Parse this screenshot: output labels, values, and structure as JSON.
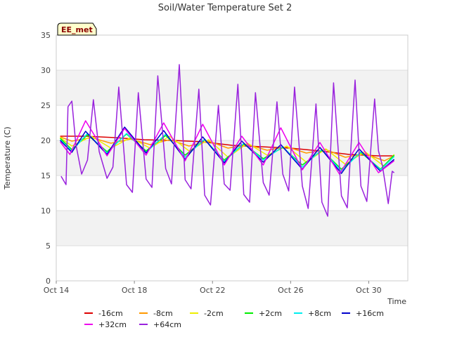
{
  "chart_data": {
    "type": "line",
    "title": "Soil/Water Temperature Set 2",
    "xlabel": "Time",
    "ylabel": "Temperature (C)",
    "badge": "EE_met",
    "x_ticks": [
      "Oct 14",
      "Oct 18",
      "Oct 22",
      "Oct 26",
      "Oct 30"
    ],
    "xlim_days": [
      14,
      32
    ],
    "ylim": [
      0,
      35
    ],
    "y_ticks": [
      0,
      5,
      10,
      15,
      20,
      25,
      30,
      35
    ],
    "grid": true,
    "legend_position": "bottom",
    "series": [
      {
        "name": "-16cm",
        "color": "#dd0000",
        "x": [
          14.2,
          15.5,
          17,
          18.5,
          20,
          21.5,
          23,
          24.5,
          26,
          27.5,
          29,
          30.5,
          31.3
        ],
        "y": [
          20.6,
          20.6,
          20.4,
          20.1,
          20.0,
          19.8,
          19.3,
          19.1,
          18.9,
          18.5,
          18.0,
          17.8,
          17.8
        ]
      },
      {
        "name": "-8cm",
        "color": "#ff9900",
        "x": [
          14.2,
          14.8,
          15.8,
          16.8,
          17.8,
          18.8,
          19.8,
          20.8,
          21.8,
          22.8,
          23.8,
          24.8,
          25.8,
          26.8,
          27.8,
          28.8,
          29.8,
          30.8,
          31.3
        ],
        "y": [
          20.5,
          19.9,
          20.4,
          19.6,
          20.2,
          19.4,
          20.1,
          19.2,
          19.9,
          18.9,
          19.4,
          18.6,
          19.1,
          18.2,
          18.7,
          17.6,
          18.1,
          17.1,
          17.8
        ]
      },
      {
        "name": "-2cm",
        "color": "#eeee00",
        "x": [
          14.2,
          14.8,
          15.8,
          16.8,
          17.8,
          18.8,
          19.8,
          20.8,
          21.8,
          22.8,
          23.8,
          24.8,
          25.8,
          26.8,
          27.8,
          28.8,
          29.8,
          30.8,
          31.3
        ],
        "y": [
          20.4,
          19.2,
          20.6,
          18.9,
          20.4,
          18.9,
          20.6,
          18.5,
          20.1,
          17.6,
          19.6,
          17.9,
          19.2,
          16.9,
          18.8,
          16.6,
          18.4,
          16.3,
          18.0
        ]
      },
      {
        "name": "+2cm",
        "color": "#00ee00",
        "x": [
          14.2,
          14.8,
          15.6,
          16.6,
          17.6,
          18.6,
          19.6,
          20.6,
          21.6,
          22.6,
          23.6,
          24.6,
          25.6,
          26.6,
          27.6,
          28.6,
          29.6,
          30.6,
          31.3
        ],
        "y": [
          20.3,
          18.7,
          20.8,
          18.4,
          20.9,
          18.5,
          20.7,
          17.9,
          20.1,
          17.2,
          19.5,
          17.4,
          19.0,
          16.5,
          18.6,
          15.9,
          18.3,
          15.9,
          17.9
        ]
      },
      {
        "name": "+8cm",
        "color": "#00eeee",
        "x": [
          14.2,
          14.8,
          15.6,
          16.6,
          17.6,
          18.6,
          19.6,
          20.6,
          21.6,
          22.6,
          23.6,
          24.6,
          25.6,
          26.6,
          27.6,
          28.6,
          29.6,
          30.6,
          31.3
        ],
        "y": [
          20.1,
          18.5,
          21.0,
          18.2,
          21.0,
          18.3,
          20.9,
          17.6,
          20.2,
          17.0,
          19.6,
          17.2,
          19.1,
          16.2,
          18.7,
          15.6,
          18.4,
          15.8,
          17.7
        ]
      },
      {
        "name": "+16cm",
        "color": "#0000cc",
        "x": [
          14.2,
          14.8,
          15.5,
          16.6,
          17.5,
          18.6,
          19.5,
          20.6,
          21.5,
          22.6,
          23.5,
          24.6,
          25.5,
          26.6,
          27.5,
          28.6,
          29.5,
          30.6,
          31.3
        ],
        "y": [
          20.0,
          18.3,
          21.3,
          18.0,
          21.9,
          18.2,
          21.4,
          17.3,
          20.5,
          16.8,
          19.9,
          16.9,
          19.4,
          15.9,
          19.0,
          15.3,
          18.8,
          15.6,
          17.3
        ]
      },
      {
        "name": "+32cm",
        "color": "#ee00ee",
        "x": [
          14.2,
          14.7,
          15.5,
          16.6,
          17.5,
          18.6,
          19.5,
          20.6,
          21.5,
          22.6,
          23.5,
          24.6,
          25.5,
          26.6,
          27.5,
          28.5,
          29.5,
          30.5,
          31.3
        ],
        "y": [
          19.8,
          18.0,
          22.8,
          17.8,
          21.7,
          17.9,
          22.5,
          17.1,
          22.3,
          16.5,
          20.6,
          16.5,
          21.8,
          15.8,
          19.7,
          15.2,
          19.7,
          15.4,
          17.1
        ]
      },
      {
        "name": "+64cm",
        "color": "#9922dd",
        "x": [
          14.25,
          14.5,
          14.6,
          14.8,
          15.0,
          15.3,
          15.6,
          15.9,
          16.2,
          16.6,
          16.9,
          17.2,
          17.6,
          17.9,
          18.2,
          18.6,
          18.9,
          19.2,
          19.6,
          19.9,
          20.3,
          20.6,
          20.9,
          21.3,
          21.6,
          21.9,
          22.3,
          22.6,
          22.9,
          23.3,
          23.6,
          23.9,
          24.2,
          24.6,
          24.9,
          25.3,
          25.6,
          25.9,
          26.2,
          26.6,
          26.9,
          27.3,
          27.6,
          27.9,
          28.2,
          28.6,
          28.9,
          29.3,
          29.6,
          29.9,
          30.3,
          30.5,
          30.7,
          31.0,
          31.2,
          31.3
        ],
        "y": [
          14.9,
          13.7,
          24.8,
          25.6,
          19.5,
          15.2,
          17.2,
          25.8,
          18.4,
          14.6,
          16.2,
          27.6,
          13.7,
          12.6,
          26.8,
          14.5,
          13.3,
          29.2,
          16.0,
          13.8,
          30.8,
          14.4,
          13.1,
          27.3,
          12.2,
          10.8,
          25.0,
          13.8,
          12.9,
          28.0,
          12.3,
          11.2,
          26.8,
          14.0,
          12.2,
          25.5,
          15.2,
          12.8,
          27.6,
          13.5,
          10.3,
          25.2,
          11.2,
          9.2,
          28.2,
          12.1,
          10.4,
          28.6,
          13.5,
          11.3,
          25.9,
          18.5,
          16.4,
          11.0,
          15.6,
          15.4
        ]
      }
    ]
  }
}
